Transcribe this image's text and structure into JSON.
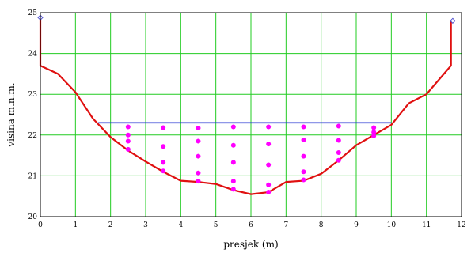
{
  "chart_data": {
    "type": "line",
    "title": "",
    "xlabel": "presjek (m)",
    "ylabel": "visina m.n.m.",
    "xlim": [
      0,
      12
    ],
    "ylim": [
      20,
      25
    ],
    "grid": true,
    "x_ticks": [
      "0",
      "1",
      "2",
      "3",
      "4",
      "5",
      "6",
      "7",
      "8",
      "9",
      "10",
      "11",
      "12"
    ],
    "y_ticks": [
      "20",
      "21",
      "22",
      "23",
      "24",
      "25"
    ],
    "colors": {
      "profile": "#e01010",
      "water": "#1f2fd0",
      "points": "#ff00ff",
      "grid": "#22cc22",
      "markers": "#5050d0"
    },
    "series": [
      {
        "role": "profile",
        "x": [
          0,
          0,
          0,
          0.5,
          1,
          1.5,
          2,
          2.5,
          3,
          3.5,
          4,
          4.5,
          5,
          5.5,
          6,
          6.5,
          7,
          7.5,
          8,
          8.5,
          9,
          9.5,
          10,
          10.5,
          11,
          11.5,
          11.7,
          11.7,
          11.75
        ],
        "y": [
          24.88,
          24.88,
          23.7,
          23.5,
          23.05,
          22.4,
          21.95,
          21.62,
          21.35,
          21.1,
          20.88,
          20.85,
          20.8,
          20.65,
          20.55,
          20.6,
          20.85,
          20.88,
          21.05,
          21.38,
          21.75,
          22.0,
          22.25,
          22.78,
          23.0,
          23.5,
          23.7,
          24.8,
          24.8
        ]
      },
      {
        "role": "water-surface",
        "x": [
          1.65,
          10.0
        ],
        "y": [
          22.3,
          22.3
        ]
      }
    ],
    "points": {
      "x": [
        2.5,
        2.5,
        2.5,
        2.5,
        3.5,
        3.5,
        3.5,
        3.5,
        4.5,
        4.5,
        4.5,
        4.5,
        4.5,
        5.5,
        5.5,
        5.5,
        5.5,
        5.5,
        6.5,
        6.5,
        6.5,
        6.5,
        6.5,
        7.5,
        7.5,
        7.5,
        7.5,
        7.5,
        8.5,
        8.5,
        8.5,
        8.5,
        9.5,
        9.5,
        9.5
      ],
      "y": [
        22.2,
        22.0,
        21.85,
        21.65,
        22.18,
        21.72,
        21.33,
        21.12,
        22.17,
        21.85,
        21.48,
        21.07,
        20.87,
        22.2,
        21.75,
        21.33,
        20.87,
        20.67,
        22.2,
        21.78,
        21.27,
        20.78,
        20.6,
        22.2,
        21.88,
        21.48,
        21.1,
        20.9,
        22.22,
        21.87,
        21.57,
        21.38,
        22.18,
        22.07,
        21.98
      ]
    },
    "markers": {
      "x": [
        0,
        11.75
      ],
      "y": [
        24.88,
        24.8
      ]
    }
  }
}
